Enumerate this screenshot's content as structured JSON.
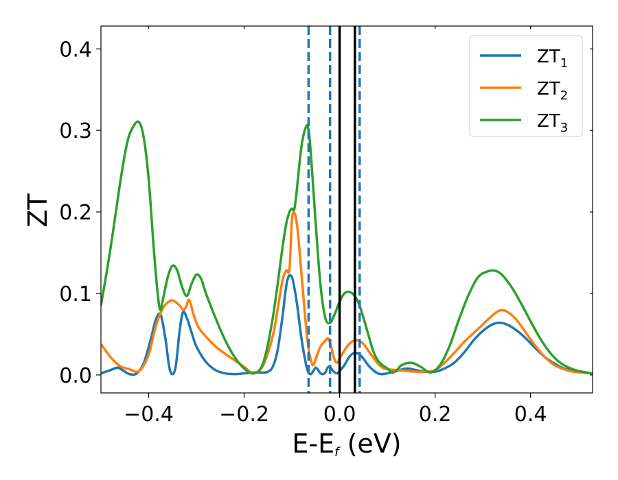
{
  "chart_data": {
    "type": "line",
    "xlabel_main": "E-E",
    "xlabel_sub": "f",
    "xlabel_unit": " (eV)",
    "ylabel": "ZT",
    "xlim": [
      -0.5,
      0.53
    ],
    "ylim": [
      -0.022,
      0.428
    ],
    "xticks": [
      -0.4,
      -0.2,
      0.0,
      0.2,
      0.4
    ],
    "xtick_labels": [
      "−0.4",
      "−0.2",
      "0.0",
      "0.2",
      "0.4"
    ],
    "yticks": [
      0.0,
      0.1,
      0.2,
      0.3,
      0.4
    ],
    "ytick_labels": [
      "0.0",
      "0.1",
      "0.2",
      "0.3",
      "0.4"
    ],
    "grid": false,
    "legend_position": "top-right",
    "vlines_dashed": [
      -0.065,
      -0.02,
      0.042
    ],
    "vlines_solid": [
      0.0,
      0.032
    ],
    "series": [
      {
        "name": "ZT",
        "name_sub": "1",
        "color": "#1f77b4",
        "x": [
          -0.5,
          -0.48,
          -0.465,
          -0.455,
          -0.44,
          -0.425,
          -0.41,
          -0.395,
          -0.385,
          -0.375,
          -0.365,
          -0.357,
          -0.35,
          -0.343,
          -0.335,
          -0.328,
          -0.32,
          -0.31,
          -0.3,
          -0.28,
          -0.26,
          -0.24,
          -0.22,
          -0.2,
          -0.18,
          -0.16,
          -0.15,
          -0.14,
          -0.13,
          -0.12,
          -0.11,
          -0.1,
          -0.09,
          -0.08,
          -0.07,
          -0.065,
          -0.06,
          -0.055,
          -0.05,
          -0.045,
          -0.04,
          -0.035,
          -0.03,
          -0.025,
          -0.02,
          -0.015,
          -0.01,
          -0.005,
          0.0,
          0.01,
          0.02,
          0.03,
          0.04,
          0.05,
          0.06,
          0.07,
          0.08,
          0.09,
          0.1,
          0.12,
          0.14,
          0.16,
          0.18,
          0.2,
          0.22,
          0.24,
          0.26,
          0.28,
          0.3,
          0.32,
          0.335,
          0.35,
          0.37,
          0.39,
          0.41,
          0.43,
          0.45,
          0.47,
          0.49,
          0.51,
          0.53
        ],
        "y": [
          0.002,
          0.006,
          0.009,
          0.006,
          0.001,
          0.002,
          0.015,
          0.045,
          0.068,
          0.074,
          0.045,
          0.01,
          0.001,
          0.012,
          0.055,
          0.077,
          0.07,
          0.052,
          0.035,
          0.016,
          0.006,
          0.002,
          0.001,
          0.002,
          0.003,
          0.003,
          0.004,
          0.01,
          0.03,
          0.07,
          0.115,
          0.12,
          0.09,
          0.045,
          0.012,
          0.003,
          0.001,
          0.005,
          0.009,
          0.006,
          0.002,
          0.001,
          0.003,
          0.009,
          0.01,
          0.006,
          0.003,
          0.002,
          0.005,
          0.012,
          0.022,
          0.027,
          0.026,
          0.02,
          0.012,
          0.006,
          0.002,
          0.001,
          0.002,
          0.005,
          0.008,
          0.006,
          0.004,
          0.004,
          0.008,
          0.015,
          0.027,
          0.042,
          0.054,
          0.062,
          0.064,
          0.062,
          0.055,
          0.045,
          0.033,
          0.022,
          0.014,
          0.008,
          0.005,
          0.003,
          0.002
        ]
      },
      {
        "name": "ZT",
        "name_sub": "2",
        "color": "#ff7f0e",
        "x": [
          -0.5,
          -0.48,
          -0.46,
          -0.44,
          -0.42,
          -0.4,
          -0.385,
          -0.37,
          -0.355,
          -0.345,
          -0.335,
          -0.328,
          -0.322,
          -0.315,
          -0.305,
          -0.295,
          -0.28,
          -0.26,
          -0.24,
          -0.22,
          -0.2,
          -0.18,
          -0.16,
          -0.14,
          -0.13,
          -0.12,
          -0.112,
          -0.105,
          -0.1,
          -0.094,
          -0.088,
          -0.08,
          -0.072,
          -0.065,
          -0.06,
          -0.055,
          -0.05,
          -0.04,
          -0.03,
          -0.025,
          -0.02,
          -0.015,
          -0.01,
          -0.005,
          0.0,
          0.01,
          0.02,
          0.03,
          0.04,
          0.05,
          0.06,
          0.07,
          0.08,
          0.09,
          0.1,
          0.12,
          0.14,
          0.16,
          0.18,
          0.2,
          0.22,
          0.24,
          0.26,
          0.28,
          0.3,
          0.32,
          0.335,
          0.35,
          0.37,
          0.39,
          0.41,
          0.43,
          0.45,
          0.47,
          0.49,
          0.51,
          0.53
        ],
        "y": [
          0.038,
          0.022,
          0.011,
          0.007,
          0.005,
          0.025,
          0.06,
          0.082,
          0.091,
          0.09,
          0.085,
          0.08,
          0.083,
          0.092,
          0.072,
          0.058,
          0.047,
          0.035,
          0.026,
          0.018,
          0.01,
          0.002,
          0.012,
          0.048,
          0.08,
          0.115,
          0.128,
          0.13,
          0.19,
          0.198,
          0.178,
          0.125,
          0.07,
          0.032,
          0.018,
          0.012,
          0.02,
          0.035,
          0.042,
          0.045,
          0.04,
          0.028,
          0.018,
          0.015,
          0.02,
          0.03,
          0.038,
          0.042,
          0.042,
          0.038,
          0.03,
          0.022,
          0.014,
          0.009,
          0.007,
          0.006,
          0.005,
          0.004,
          0.004,
          0.006,
          0.015,
          0.027,
          0.04,
          0.051,
          0.062,
          0.073,
          0.079,
          0.078,
          0.068,
          0.052,
          0.036,
          0.022,
          0.012,
          0.007,
          0.004,
          0.003,
          0.002
        ]
      },
      {
        "name": "ZT",
        "name_sub": "3",
        "color": "#2ca02c",
        "x": [
          -0.5,
          -0.48,
          -0.46,
          -0.445,
          -0.432,
          -0.42,
          -0.41,
          -0.4,
          -0.39,
          -0.382,
          -0.376,
          -0.37,
          -0.36,
          -0.35,
          -0.34,
          -0.33,
          -0.32,
          -0.31,
          -0.3,
          -0.29,
          -0.28,
          -0.26,
          -0.24,
          -0.22,
          -0.2,
          -0.18,
          -0.16,
          -0.14,
          -0.12,
          -0.112,
          -0.105,
          -0.1,
          -0.095,
          -0.09,
          -0.08,
          -0.07,
          -0.065,
          -0.06,
          -0.05,
          -0.04,
          -0.03,
          -0.02,
          -0.01,
          0.0,
          0.01,
          0.02,
          0.03,
          0.04,
          0.05,
          0.06,
          0.07,
          0.08,
          0.09,
          0.1,
          0.11,
          0.12,
          0.13,
          0.15,
          0.17,
          0.19,
          0.21,
          0.23,
          0.25,
          0.27,
          0.29,
          0.31,
          0.325,
          0.34,
          0.36,
          0.38,
          0.4,
          0.42,
          0.44,
          0.46,
          0.48,
          0.5,
          0.53
        ],
        "y": [
          0.085,
          0.155,
          0.235,
          0.285,
          0.305,
          0.31,
          0.29,
          0.24,
          0.16,
          0.105,
          0.08,
          0.093,
          0.12,
          0.134,
          0.128,
          0.108,
          0.097,
          0.112,
          0.123,
          0.118,
          0.1,
          0.07,
          0.043,
          0.022,
          0.008,
          0.002,
          0.015,
          0.07,
          0.155,
          0.185,
          0.2,
          0.204,
          0.203,
          0.225,
          0.28,
          0.305,
          0.3,
          0.27,
          0.185,
          0.11,
          0.07,
          0.064,
          0.075,
          0.09,
          0.1,
          0.102,
          0.098,
          0.088,
          0.07,
          0.05,
          0.03,
          0.018,
          0.012,
          0.008,
          0.003,
          0.006,
          0.012,
          0.015,
          0.01,
          0.003,
          0.012,
          0.035,
          0.068,
          0.098,
          0.12,
          0.127,
          0.128,
          0.123,
          0.108,
          0.088,
          0.066,
          0.045,
          0.028,
          0.016,
          0.009,
          0.005,
          0.002
        ]
      }
    ]
  }
}
